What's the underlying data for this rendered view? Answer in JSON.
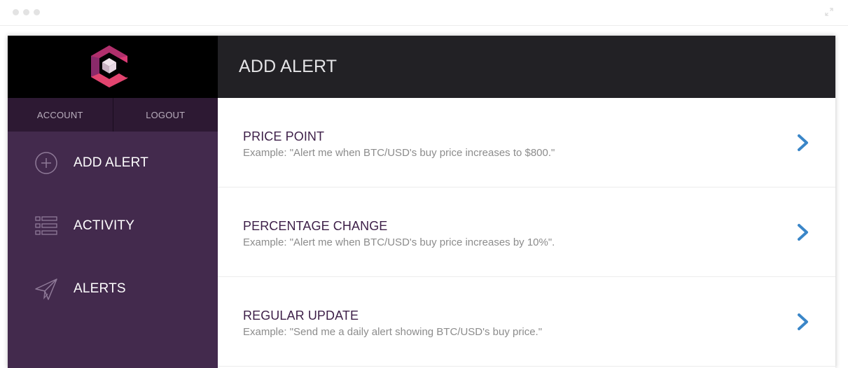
{
  "colors": {
    "sidebar_bg": "#432a4d",
    "header_bg": "#222125",
    "title_text": "#3d1f48",
    "chevron": "#3a86c8",
    "logo_pink": "#d93a74",
    "logo_purple": "#7a2f6e"
  },
  "sidebar": {
    "logo_icon": "app-logo-cube",
    "account_label": "ACCOUNT",
    "logout_label": "LOGOUT",
    "items": [
      {
        "label": "ADD ALERT",
        "icon": "plus-circle-icon"
      },
      {
        "label": "ACTIVITY",
        "icon": "list-icon"
      },
      {
        "label": "ALERTS",
        "icon": "paper-plane-icon"
      }
    ]
  },
  "main": {
    "title": "ADD ALERT",
    "options": [
      {
        "title": "PRICE POINT",
        "description": "Example: \"Alert me when BTC/USD's buy price increases to $800.\"",
        "icon": "chevron-right-icon"
      },
      {
        "title": "PERCENTAGE CHANGE",
        "description": "Example: \"Alert me when BTC/USD's buy price increases by 10%\".",
        "icon": "chevron-right-icon"
      },
      {
        "title": "REGULAR UPDATE",
        "description": "Example: \"Send me a daily alert showing BTC/USD's buy price.\"",
        "icon": "chevron-right-icon"
      }
    ]
  }
}
